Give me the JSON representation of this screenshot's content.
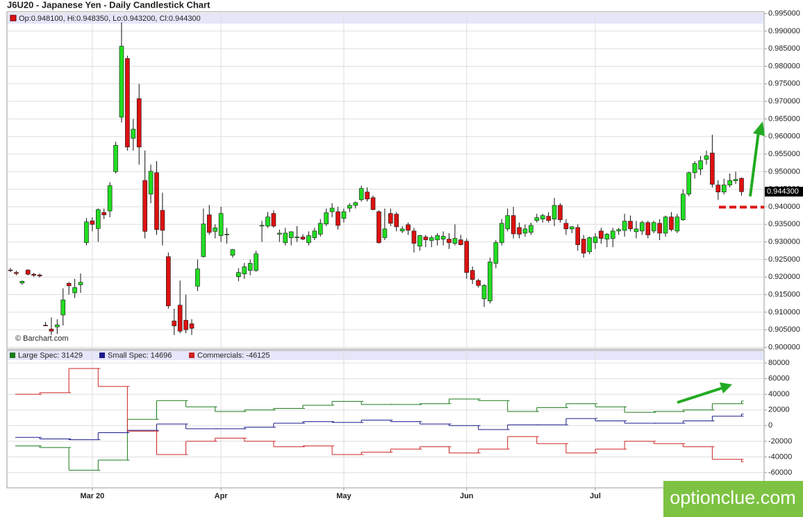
{
  "chart_data": [
    {
      "type": "candlestick",
      "title": "J6U20 - Japanese Yen - Daily Candlestick Chart",
      "info": "Op:0.948100, Hi:0.948350, Lo:0.943200, Cl:0.944300",
      "watermark": "© Barchart.com",
      "last_label": "0.944300",
      "last_value": 0.9443,
      "up_color": "#22dd22",
      "down_color": "#dd1111",
      "grid": true,
      "ylim": [
        0.8995,
        0.9955
      ],
      "yticks": [
        {
          "value": 0.9,
          "label": "0.900000"
        },
        {
          "value": 0.905,
          "label": "0.905000"
        },
        {
          "value": 0.91,
          "label": "0.910000"
        },
        {
          "value": 0.915,
          "label": "0.915000"
        },
        {
          "value": 0.92,
          "label": "0.920000"
        },
        {
          "value": 0.925,
          "label": "0.925000"
        },
        {
          "value": 0.93,
          "label": "0.930000"
        },
        {
          "value": 0.935,
          "label": "0.935000"
        },
        {
          "value": 0.94,
          "label": "0.940000"
        },
        {
          "value": 0.945,
          "label": "0.945000"
        },
        {
          "value": 0.95,
          "label": "0.950000"
        },
        {
          "value": 0.955,
          "label": "0.955000"
        },
        {
          "value": 0.96,
          "label": "0.960000"
        },
        {
          "value": 0.965,
          "label": "0.965000"
        },
        {
          "value": 0.97,
          "label": "0.970000"
        },
        {
          "value": 0.975,
          "label": "0.975000"
        },
        {
          "value": 0.98,
          "label": "0.980000"
        },
        {
          "value": 0.985,
          "label": "0.985000"
        },
        {
          "value": 0.99,
          "label": "0.990000"
        },
        {
          "value": 0.995,
          "label": "0.995000"
        }
      ],
      "categories": [
        null,
        null,
        null,
        null,
        null,
        null,
        null,
        null,
        null,
        null,
        null,
        null,
        null,
        null,
        "Mar 20",
        null,
        null,
        null,
        null,
        null,
        null,
        null,
        null,
        null,
        null,
        null,
        null,
        null,
        null,
        null,
        null,
        null,
        null,
        null,
        null,
        null,
        "Apr",
        null,
        null,
        null,
        null,
        null,
        null,
        null,
        null,
        null,
        null,
        null,
        null,
        null,
        null,
        null,
        null,
        null,
        null,
        null,
        null,
        "May",
        null,
        null,
        null,
        null,
        null,
        null,
        null,
        null,
        null,
        null,
        null,
        null,
        null,
        null,
        null,
        null,
        null,
        null,
        null,
        null,
        "Jun",
        null,
        null,
        null,
        null,
        null,
        null,
        null,
        null,
        null,
        null,
        null,
        null,
        null,
        null,
        null,
        null,
        null,
        null,
        null,
        null,
        null,
        "Jul",
        null,
        null,
        null,
        null,
        null,
        null,
        null,
        null,
        null,
        null,
        null,
        null,
        null,
        null,
        null,
        null,
        null,
        null,
        null,
        null,
        null,
        null,
        null,
        null,
        null,
        null
      ],
      "candles": [
        {
          "o": 0.922,
          "h": 0.9226,
          "l": 0.9214,
          "c": 0.9219
        },
        {
          "o": 0.9213,
          "h": 0.9218,
          "l": 0.9205,
          "c": 0.921
        },
        {
          "o": 0.9183,
          "h": 0.919,
          "l": 0.9178,
          "c": 0.9188
        },
        {
          "o": 0.922,
          "h": 0.9222,
          "l": 0.9205,
          "c": 0.9208
        },
        {
          "o": 0.9208,
          "h": 0.9212,
          "l": 0.92,
          "c": 0.9205
        },
        {
          "o": 0.9206,
          "h": 0.921,
          "l": 0.9198,
          "c": 0.9203
        },
        {
          "o": 0.9063,
          "h": 0.9072,
          "l": 0.906,
          "c": 0.9062
        },
        {
          "o": 0.9052,
          "h": 0.9085,
          "l": 0.9035,
          "c": 0.9046
        },
        {
          "o": 0.9058,
          "h": 0.908,
          "l": 0.9038,
          "c": 0.9064
        },
        {
          "o": 0.9092,
          "h": 0.9168,
          "l": 0.9062,
          "c": 0.9135
        },
        {
          "o": 0.9182,
          "h": 0.9186,
          "l": 0.915,
          "c": 0.9175
        },
        {
          "o": 0.9155,
          "h": 0.9195,
          "l": 0.914,
          "c": 0.917
        },
        {
          "o": 0.9178,
          "h": 0.921,
          "l": 0.9155,
          "c": 0.9185
        },
        {
          "o": 0.9298,
          "h": 0.9368,
          "l": 0.929,
          "c": 0.9357
        },
        {
          "o": 0.936,
          "h": 0.937,
          "l": 0.933,
          "c": 0.935
        },
        {
          "o": 0.9338,
          "h": 0.9395,
          "l": 0.93,
          "c": 0.9392
        },
        {
          "o": 0.9384,
          "h": 0.9395,
          "l": 0.9365,
          "c": 0.9377
        },
        {
          "o": 0.9388,
          "h": 0.947,
          "l": 0.937,
          "c": 0.946
        },
        {
          "o": 0.95,
          "h": 0.9585,
          "l": 0.9495,
          "c": 0.9575
        },
        {
          "o": 0.9655,
          "h": 0.9925,
          "l": 0.964,
          "c": 0.9857
        },
        {
          "o": 0.9822,
          "h": 0.983,
          "l": 0.956,
          "c": 0.957
        },
        {
          "o": 0.9595,
          "h": 0.965,
          "l": 0.956,
          "c": 0.9621
        },
        {
          "o": 0.9708,
          "h": 0.975,
          "l": 0.952,
          "c": 0.957
        },
        {
          "o": 0.9475,
          "h": 0.956,
          "l": 0.931,
          "c": 0.933
        },
        {
          "o": 0.9436,
          "h": 0.952,
          "l": 0.941,
          "c": 0.9501
        },
        {
          "o": 0.9497,
          "h": 0.953,
          "l": 0.932,
          "c": 0.9335
        },
        {
          "o": 0.939,
          "h": 0.944,
          "l": 0.929,
          "c": 0.9333
        },
        {
          "o": 0.9258,
          "h": 0.927,
          "l": 0.911,
          "c": 0.9118
        },
        {
          "o": 0.9075,
          "h": 0.911,
          "l": 0.9035,
          "c": 0.9061
        },
        {
          "o": 0.912,
          "h": 0.919,
          "l": 0.904,
          "c": 0.9046
        },
        {
          "o": 0.9077,
          "h": 0.915,
          "l": 0.904,
          "c": 0.905
        },
        {
          "o": 0.9067,
          "h": 0.908,
          "l": 0.9035,
          "c": 0.9054
        },
        {
          "o": 0.9174,
          "h": 0.925,
          "l": 0.916,
          "c": 0.9223
        },
        {
          "o": 0.9258,
          "h": 0.9395,
          "l": 0.9255,
          "c": 0.9351
        },
        {
          "o": 0.9377,
          "h": 0.9405,
          "l": 0.932,
          "c": 0.9327
        },
        {
          "o": 0.933,
          "h": 0.935,
          "l": 0.931,
          "c": 0.934
        },
        {
          "o": 0.9318,
          "h": 0.94,
          "l": 0.93,
          "c": 0.9381
        },
        {
          "o": 0.932,
          "h": 0.934,
          "l": 0.9295,
          "c": 0.9322
        },
        {
          "o": 0.9262,
          "h": 0.928,
          "l": 0.9255,
          "c": 0.9278
        },
        {
          "o": 0.9201,
          "h": 0.9225,
          "l": 0.9188,
          "c": 0.9213
        },
        {
          "o": 0.9209,
          "h": 0.924,
          "l": 0.9195,
          "c": 0.9229
        },
        {
          "o": 0.9219,
          "h": 0.925,
          "l": 0.9205,
          "c": 0.9239
        },
        {
          "o": 0.9219,
          "h": 0.9275,
          "l": 0.9215,
          "c": 0.9266
        },
        {
          "o": 0.9345,
          "h": 0.936,
          "l": 0.93,
          "c": 0.9347
        },
        {
          "o": 0.9345,
          "h": 0.9385,
          "l": 0.934,
          "c": 0.9371
        },
        {
          "o": 0.9381,
          "h": 0.939,
          "l": 0.934,
          "c": 0.9345
        },
        {
          "o": 0.9322,
          "h": 0.9335,
          "l": 0.93,
          "c": 0.9325
        },
        {
          "o": 0.9298,
          "h": 0.934,
          "l": 0.929,
          "c": 0.9325
        },
        {
          "o": 0.9312,
          "h": 0.933,
          "l": 0.929,
          "c": 0.9329
        },
        {
          "o": 0.9312,
          "h": 0.9345,
          "l": 0.93,
          "c": 0.9314
        },
        {
          "o": 0.9314,
          "h": 0.9322,
          "l": 0.9305,
          "c": 0.9308
        },
        {
          "o": 0.9298,
          "h": 0.933,
          "l": 0.929,
          "c": 0.9318
        },
        {
          "o": 0.9312,
          "h": 0.934,
          "l": 0.9305,
          "c": 0.9331
        },
        {
          "o": 0.9322,
          "h": 0.9365,
          "l": 0.9315,
          "c": 0.9353
        },
        {
          "o": 0.9351,
          "h": 0.9395,
          "l": 0.9345,
          "c": 0.9383
        },
        {
          "o": 0.9386,
          "h": 0.941,
          "l": 0.937,
          "c": 0.9396
        },
        {
          "o": 0.9386,
          "h": 0.94,
          "l": 0.9335,
          "c": 0.9347
        },
        {
          "o": 0.9367,
          "h": 0.9395,
          "l": 0.9355,
          "c": 0.9386
        },
        {
          "o": 0.9396,
          "h": 0.941,
          "l": 0.9385,
          "c": 0.9404
        },
        {
          "o": 0.9404,
          "h": 0.9415,
          "l": 0.9395,
          "c": 0.9412
        },
        {
          "o": 0.942,
          "h": 0.946,
          "l": 0.9415,
          "c": 0.9452
        },
        {
          "o": 0.9442,
          "h": 0.9455,
          "l": 0.9415,
          "c": 0.9422
        },
        {
          "o": 0.9426,
          "h": 0.9432,
          "l": 0.939,
          "c": 0.9392
        },
        {
          "o": 0.9386,
          "h": 0.939,
          "l": 0.9295,
          "c": 0.9298
        },
        {
          "o": 0.9312,
          "h": 0.9395,
          "l": 0.9305,
          "c": 0.9337
        },
        {
          "o": 0.9381,
          "h": 0.9395,
          "l": 0.9345,
          "c": 0.9353
        },
        {
          "o": 0.9379,
          "h": 0.9385,
          "l": 0.933,
          "c": 0.9343
        },
        {
          "o": 0.9331,
          "h": 0.9345,
          "l": 0.9325,
          "c": 0.9337
        },
        {
          "o": 0.9349,
          "h": 0.9355,
          "l": 0.932,
          "c": 0.9333
        },
        {
          "o": 0.9331,
          "h": 0.934,
          "l": 0.927,
          "c": 0.9296
        },
        {
          "o": 0.9288,
          "h": 0.932,
          "l": 0.9275,
          "c": 0.9318
        },
        {
          "o": 0.9314,
          "h": 0.932,
          "l": 0.9285,
          "c": 0.9306
        },
        {
          "o": 0.9304,
          "h": 0.9318,
          "l": 0.9285,
          "c": 0.9312
        },
        {
          "o": 0.9306,
          "h": 0.9325,
          "l": 0.929,
          "c": 0.9318
        },
        {
          "o": 0.9308,
          "h": 0.933,
          "l": 0.929,
          "c": 0.9316
        },
        {
          "o": 0.9308,
          "h": 0.9325,
          "l": 0.928,
          "c": 0.9298
        },
        {
          "o": 0.9296,
          "h": 0.935,
          "l": 0.929,
          "c": 0.931
        },
        {
          "o": 0.9306,
          "h": 0.932,
          "l": 0.929,
          "c": 0.9292
        },
        {
          "o": 0.9302,
          "h": 0.931,
          "l": 0.9195,
          "c": 0.9213
        },
        {
          "o": 0.9219,
          "h": 0.923,
          "l": 0.918,
          "c": 0.9193
        },
        {
          "o": 0.919,
          "h": 0.9195,
          "l": 0.917,
          "c": 0.9176
        },
        {
          "o": 0.9138,
          "h": 0.918,
          "l": 0.9115,
          "c": 0.9176
        },
        {
          "o": 0.9132,
          "h": 0.9255,
          "l": 0.9125,
          "c": 0.9243
        },
        {
          "o": 0.9239,
          "h": 0.9305,
          "l": 0.9225,
          "c": 0.9298
        },
        {
          "o": 0.9298,
          "h": 0.9365,
          "l": 0.929,
          "c": 0.9353
        },
        {
          "o": 0.9337,
          "h": 0.9395,
          "l": 0.933,
          "c": 0.9375
        },
        {
          "o": 0.9375,
          "h": 0.94,
          "l": 0.931,
          "c": 0.9323
        },
        {
          "o": 0.9341,
          "h": 0.9355,
          "l": 0.931,
          "c": 0.9322
        },
        {
          "o": 0.9325,
          "h": 0.935,
          "l": 0.9315,
          "c": 0.9337
        },
        {
          "o": 0.9327,
          "h": 0.9355,
          "l": 0.932,
          "c": 0.9347
        },
        {
          "o": 0.9361,
          "h": 0.938,
          "l": 0.9355,
          "c": 0.9369
        },
        {
          "o": 0.9365,
          "h": 0.938,
          "l": 0.9355,
          "c": 0.9375
        },
        {
          "o": 0.9373,
          "h": 0.9385,
          "l": 0.9355,
          "c": 0.9361
        },
        {
          "o": 0.9365,
          "h": 0.9425,
          "l": 0.9345,
          "c": 0.9404
        },
        {
          "o": 0.9404,
          "h": 0.941,
          "l": 0.9355,
          "c": 0.9363
        },
        {
          "o": 0.9353,
          "h": 0.9365,
          "l": 0.932,
          "c": 0.9337
        },
        {
          "o": 0.9337,
          "h": 0.9345,
          "l": 0.9325,
          "c": 0.9343
        },
        {
          "o": 0.9341,
          "h": 0.935,
          "l": 0.9275,
          "c": 0.9292
        },
        {
          "o": 0.9308,
          "h": 0.932,
          "l": 0.9255,
          "c": 0.9268
        },
        {
          "o": 0.9272,
          "h": 0.9315,
          "l": 0.9265,
          "c": 0.9312
        },
        {
          "o": 0.9298,
          "h": 0.9325,
          "l": 0.928,
          "c": 0.9314
        },
        {
          "o": 0.9331,
          "h": 0.934,
          "l": 0.9295,
          "c": 0.931
        },
        {
          "o": 0.9308,
          "h": 0.9325,
          "l": 0.9285,
          "c": 0.9322
        },
        {
          "o": 0.931,
          "h": 0.934,
          "l": 0.9285,
          "c": 0.9331
        },
        {
          "o": 0.9331,
          "h": 0.934,
          "l": 0.932,
          "c": 0.9335
        },
        {
          "o": 0.9333,
          "h": 0.938,
          "l": 0.9315,
          "c": 0.9359
        },
        {
          "o": 0.9359,
          "h": 0.9375,
          "l": 0.933,
          "c": 0.9337
        },
        {
          "o": 0.9329,
          "h": 0.936,
          "l": 0.931,
          "c": 0.9337
        },
        {
          "o": 0.9331,
          "h": 0.936,
          "l": 0.932,
          "c": 0.9355
        },
        {
          "o": 0.9355,
          "h": 0.936,
          "l": 0.931,
          "c": 0.932
        },
        {
          "o": 0.9331,
          "h": 0.936,
          "l": 0.9325,
          "c": 0.9355
        },
        {
          "o": 0.9353,
          "h": 0.9365,
          "l": 0.9305,
          "c": 0.9325
        },
        {
          "o": 0.9325,
          "h": 0.9375,
          "l": 0.9315,
          "c": 0.9371
        },
        {
          "o": 0.9371,
          "h": 0.9385,
          "l": 0.933,
          "c": 0.9335
        },
        {
          "o": 0.9331,
          "h": 0.938,
          "l": 0.9325,
          "c": 0.9371
        },
        {
          "o": 0.9363,
          "h": 0.945,
          "l": 0.936,
          "c": 0.9436
        },
        {
          "o": 0.9436,
          "h": 0.95,
          "l": 0.943,
          "c": 0.9497
        },
        {
          "o": 0.9497,
          "h": 0.953,
          "l": 0.948,
          "c": 0.9523
        },
        {
          "o": 0.9507,
          "h": 0.9545,
          "l": 0.949,
          "c": 0.9531
        },
        {
          "o": 0.9535,
          "h": 0.956,
          "l": 0.952,
          "c": 0.9545
        },
        {
          "o": 0.9553,
          "h": 0.9605,
          "l": 0.9455,
          "c": 0.9464
        },
        {
          "o": 0.9462,
          "h": 0.9475,
          "l": 0.942,
          "c": 0.9442
        },
        {
          "o": 0.9442,
          "h": 0.948,
          "l": 0.9435,
          "c": 0.9462
        },
        {
          "o": 0.9462,
          "h": 0.9495,
          "l": 0.9455,
          "c": 0.9475
        },
        {
          "o": 0.9474,
          "h": 0.95,
          "l": 0.9465,
          "c": 0.9478
        },
        {
          "o": 0.9481,
          "h": 0.94835,
          "l": 0.9432,
          "c": 0.9443
        }
      ]
    },
    {
      "type": "step",
      "ylim": [
        -79500,
        96000
      ],
      "yticks": [
        -60000,
        -40000,
        -20000,
        0,
        20000,
        40000,
        60000,
        80000
      ],
      "series": [
        {
          "name": "Large Spec: 31429",
          "color": "#1a7a1a",
          "values": [
            -26000,
            -28000,
            -57000,
            -44000,
            8000,
            32000,
            24000,
            18000,
            20000,
            22000,
            26000,
            31000,
            27000,
            27000,
            28000,
            34000,
            32000,
            18000,
            23000,
            28000,
            24000,
            17000,
            18000,
            20000,
            28000,
            31429
          ]
        },
        {
          "name": "Small Spec: 14696",
          "color": "#1a1a8a",
          "values": [
            -15000,
            -17000,
            -18000,
            -9000,
            -6000,
            2000,
            -4000,
            -4000,
            -2000,
            3000,
            5000,
            4000,
            7000,
            5000,
            2000,
            0,
            -5000,
            1000,
            1000,
            9000,
            6000,
            3000,
            3000,
            6000,
            12000,
            14696
          ]
        },
        {
          "name": "Commercials: -46125",
          "color": "#cc2222",
          "values": [
            40000,
            42000,
            73000,
            50000,
            -7000,
            -37000,
            -20000,
            -16000,
            -20000,
            -27000,
            -26000,
            -37000,
            -34000,
            -30000,
            -27000,
            -35000,
            -30000,
            -14000,
            -23000,
            -35000,
            -30000,
            -20000,
            -23000,
            -27000,
            -43000,
            -46125
          ]
        }
      ]
    }
  ],
  "logo": "optionclue.com"
}
